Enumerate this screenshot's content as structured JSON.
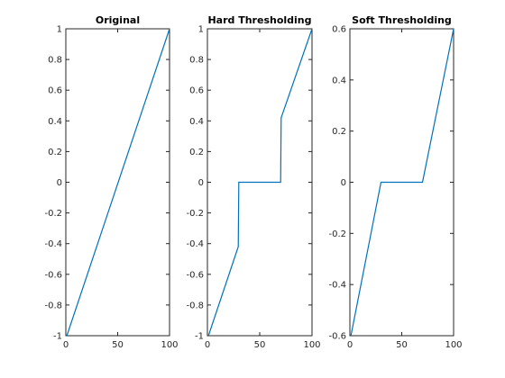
{
  "chart_data": [
    {
      "type": "line",
      "title": "Original",
      "xlim": [
        0,
        100
      ],
      "ylim": [
        -1,
        1
      ],
      "xticks": [
        0,
        50,
        100
      ],
      "yticks": [
        -1,
        -0.8,
        -0.6,
        -0.4,
        -0.2,
        0,
        0.2,
        0.4,
        0.6,
        0.8,
        1
      ],
      "xtick_labels": [
        "0",
        "50",
        "100"
      ],
      "ytick_labels": [
        "-1",
        "-0.8",
        "-0.6",
        "-0.4",
        "-0.2",
        "0",
        "0.2",
        "0.4",
        "0.6",
        "0.8",
        "1"
      ],
      "grid": false,
      "series": [
        {
          "color": "#0072bd",
          "x": [
            1,
            100
          ],
          "y": [
            -1,
            1
          ]
        }
      ]
    },
    {
      "type": "line",
      "title": "Hard Thresholding",
      "xlim": [
        0,
        100
      ],
      "ylim": [
        -1,
        1
      ],
      "xticks": [
        0,
        50,
        100
      ],
      "yticks": [
        -1,
        -0.8,
        -0.6,
        -0.4,
        -0.2,
        0,
        0.2,
        0.4,
        0.6,
        0.8,
        1
      ],
      "xtick_labels": [
        "0",
        "50",
        "100"
      ],
      "ytick_labels": [
        "-1",
        "-0.8",
        "-0.6",
        "-0.4",
        "-0.2",
        "0",
        "0.2",
        "0.4",
        "0.6",
        "0.8",
        "1"
      ],
      "grid": false,
      "series": [
        {
          "color": "#0072bd",
          "x": [
            1,
            29.5,
            30,
            70,
            70.5,
            100
          ],
          "y": [
            -1,
            -0.42,
            0,
            0,
            0.42,
            1
          ]
        }
      ]
    },
    {
      "type": "line",
      "title": "Soft Thresholding",
      "xlim": [
        0,
        100
      ],
      "ylim": [
        -0.6,
        0.6
      ],
      "xticks": [
        0,
        50,
        100
      ],
      "yticks": [
        -0.6,
        -0.4,
        -0.2,
        0,
        0.2,
        0.4,
        0.6
      ],
      "xtick_labels": [
        "0",
        "50",
        "100"
      ],
      "ytick_labels": [
        "-0.6",
        "-0.4",
        "-0.2",
        "0",
        "0.2",
        "0.4",
        "0.6"
      ],
      "grid": false,
      "series": [
        {
          "color": "#0072bd",
          "x": [
            1,
            30,
            70,
            100
          ],
          "y": [
            -0.6,
            0,
            0,
            0.6
          ]
        }
      ]
    }
  ]
}
